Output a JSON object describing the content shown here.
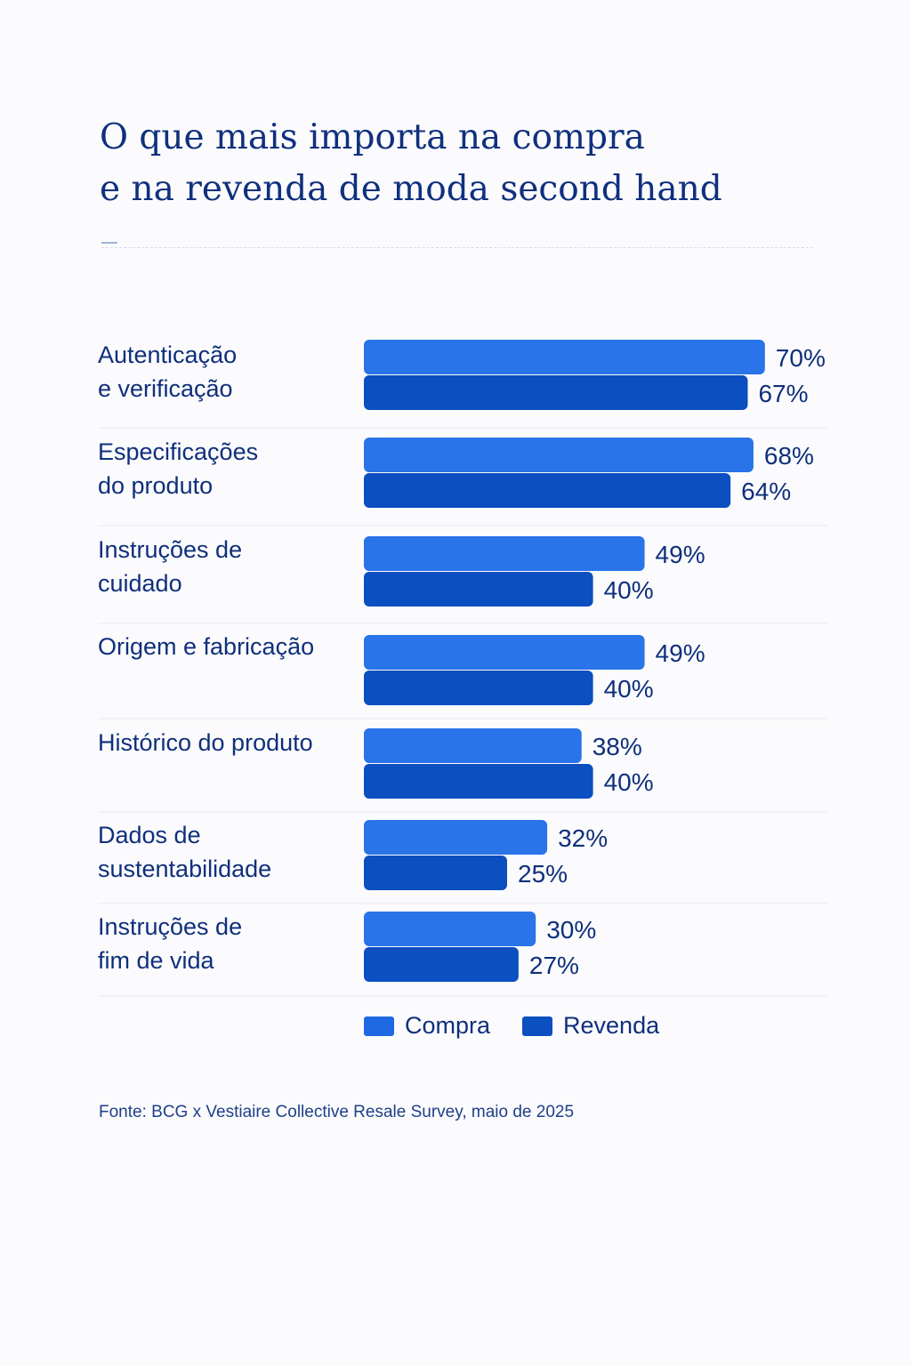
{
  "title": {
    "line1": "O que mais importa na compra",
    "line2": "e na revenda de moda second hand"
  },
  "chart_data": {
    "type": "bar",
    "orientation": "horizontal",
    "categories": [
      [
        "Autenticação",
        "e verificação"
      ],
      [
        "Especificações",
        "do produto"
      ],
      [
        "Instruções de",
        "cuidado"
      ],
      [
        "Origem e fabricação"
      ],
      [
        "Histórico do produto"
      ],
      [
        "Dados de",
        "sustentabilidade"
      ],
      [
        "Instruções de",
        "fim de vida"
      ]
    ],
    "series": [
      {
        "name": "Compra",
        "color": "#2874e8",
        "values": [
          70,
          68,
          49,
          49,
          38,
          32,
          30
        ],
        "labels": [
          "70%",
          "68%",
          "49%",
          "49%",
          "38%",
          "32%",
          "30%"
        ]
      },
      {
        "name": "Revenda",
        "color": "#0b4fc0",
        "values": [
          67,
          64,
          40,
          40,
          40,
          25,
          27
        ],
        "labels": [
          "67%",
          "64%",
          "40%",
          "40%",
          "40%",
          "25%",
          "27%"
        ]
      }
    ],
    "unit": "%",
    "legend": "bottom",
    "grid": false
  },
  "legend": {
    "compra": "Compra",
    "revenda": "Revenda",
    "compra_color": "#1f68e3",
    "revenda_color": "#0b4fc0"
  },
  "source": "Fonte: BCG x Vestiaire Collective Resale Survey, maio de 2025"
}
